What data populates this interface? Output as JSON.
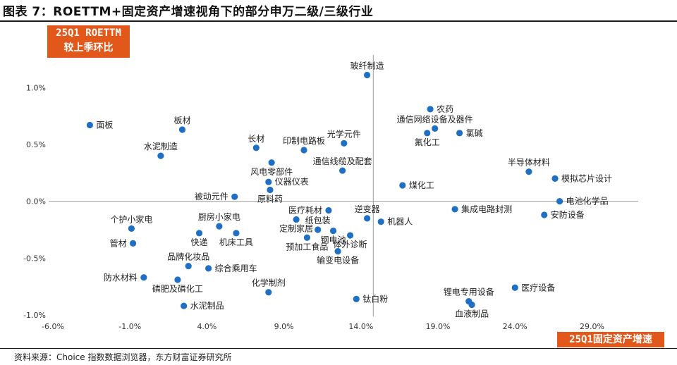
{
  "header": {
    "title": "图表 7：ROETTM+固定资产增速视角下的部分申万二级/三级行业"
  },
  "y_tag": {
    "line1": "25Q1 ROETTM",
    "line2": "较上季环比"
  },
  "x_tag": "25Q1固定资产增速",
  "source": "资料来源：Choice 指数数据浏览器，东方财富证券研究所",
  "colors": {
    "point": "#1f6fc5",
    "tag": "#e2581b"
  },
  "chart_data": {
    "type": "scatter",
    "xlim": [
      -6,
      32
    ],
    "ylim": [
      -1.0,
      1.2
    ],
    "x_ticks": [
      -6,
      -1,
      4,
      9,
      14,
      19,
      24,
      29
    ],
    "x_tick_labels": [
      "-6.0%",
      "-1.0%",
      "4.0%",
      "9.0%",
      "14.0%",
      "19.0%",
      "24.0%",
      "29.0%"
    ],
    "y_ticks": [
      1.0,
      0.5,
      0.0,
      -0.5,
      -1.0
    ],
    "y_tick_labels": [
      "1.0%",
      "0.5%",
      "0.0%",
      "-0.5%",
      "-1.0%"
    ],
    "quadrant_lines": {
      "x": 14.8,
      "y": 0.0
    },
    "points": [
      {
        "name": "玻纤制造",
        "x": 14.4,
        "y": 1.11,
        "pos": "above"
      },
      {
        "name": "农药",
        "x": 18.5,
        "y": 0.81,
        "pos": "right"
      },
      {
        "name": "面板",
        "x": -3.6,
        "y": 0.67,
        "pos": "right"
      },
      {
        "name": "板材",
        "x": 2.4,
        "y": 0.63,
        "pos": "above"
      },
      {
        "name": "通信网络设备及器件",
        "x": 18.8,
        "y": 0.64,
        "pos": "above"
      },
      {
        "name": "氯碱",
        "x": 20.4,
        "y": 0.6,
        "pos": "right"
      },
      {
        "name": "氟化工",
        "x": 18.3,
        "y": 0.6,
        "pos": "below"
      },
      {
        "name": "光学元件",
        "x": 12.9,
        "y": 0.51,
        "pos": "above"
      },
      {
        "name": "长材",
        "x": 7.2,
        "y": 0.47,
        "pos": "above"
      },
      {
        "name": "印制电路板",
        "x": 10.3,
        "y": 0.45,
        "pos": "above"
      },
      {
        "name": "水泥制造",
        "x": 1.0,
        "y": 0.4,
        "pos": "above"
      },
      {
        "name": "风电零部件",
        "x": 8.2,
        "y": 0.34,
        "pos": "below"
      },
      {
        "name": "通信线缆及配套",
        "x": 12.8,
        "y": 0.27,
        "pos": "above"
      },
      {
        "name": "半导体材料",
        "x": 24.9,
        "y": 0.26,
        "pos": "above"
      },
      {
        "name": "模拟芯片设计",
        "x": 26.6,
        "y": 0.2,
        "pos": "right"
      },
      {
        "name": "仪器仪表",
        "x": 8.0,
        "y": 0.17,
        "pos": "right"
      },
      {
        "name": "煤化工",
        "x": 16.7,
        "y": 0.14,
        "pos": "right"
      },
      {
        "name": "原料药",
        "x": 8.1,
        "y": 0.1,
        "pos": "below"
      },
      {
        "name": "被动元件",
        "x": 5.8,
        "y": 0.04,
        "pos": "left"
      },
      {
        "name": "电池化学品",
        "x": 26.9,
        "y": 0.0,
        "pos": "right"
      },
      {
        "name": "医疗耗材",
        "x": 11.9,
        "y": -0.08,
        "pos": "left"
      },
      {
        "name": "集成电路封测",
        "x": 20.1,
        "y": -0.07,
        "pos": "right"
      },
      {
        "name": "安防设备",
        "x": 25.9,
        "y": -0.12,
        "pos": "right"
      },
      {
        "name": "逆变器",
        "x": 14.4,
        "y": -0.15,
        "pos": "above"
      },
      {
        "name": "机器人",
        "x": 15.3,
        "y": -0.18,
        "pos": "right"
      },
      {
        "name": "定制家居",
        "x": 9.8,
        "y": -0.16,
        "pos": "below"
      },
      {
        "name": "纸包装",
        "x": 11.2,
        "y": -0.25,
        "pos": "above"
      },
      {
        "name": "厨房小家电",
        "x": 4.8,
        "y": -0.22,
        "pos": "above"
      },
      {
        "name": "个护小家电",
        "x": -0.9,
        "y": -0.24,
        "pos": "above"
      },
      {
        "name": "钢电池",
        "x": 12.2,
        "y": -0.26,
        "pos": "below"
      },
      {
        "name": "机床工具",
        "x": 5.9,
        "y": -0.28,
        "pos": "below"
      },
      {
        "name": "快递",
        "x": 3.5,
        "y": -0.28,
        "pos": "below"
      },
      {
        "name": "体外诊断",
        "x": 13.3,
        "y": -0.3,
        "pos": "below"
      },
      {
        "name": "预加工食品",
        "x": 10.5,
        "y": -0.32,
        "pos": "below"
      },
      {
        "name": "管材",
        "x": -0.8,
        "y": -0.37,
        "pos": "left"
      },
      {
        "name": "输变电设备",
        "x": 12.5,
        "y": -0.44,
        "pos": "below"
      },
      {
        "name": "品牌化妆品",
        "x": 2.8,
        "y": -0.57,
        "pos": "above"
      },
      {
        "name": "综合乘用车",
        "x": 4.1,
        "y": -0.59,
        "pos": "right"
      },
      {
        "name": "防水材料",
        "x": -0.1,
        "y": -0.67,
        "pos": "left"
      },
      {
        "name": "磷肥及磷化工",
        "x": 2.1,
        "y": -0.69,
        "pos": "below"
      },
      {
        "name": "化学制剂",
        "x": 8.0,
        "y": -0.8,
        "pos": "above"
      },
      {
        "name": "医疗设备",
        "x": 24.0,
        "y": -0.76,
        "pos": "right"
      },
      {
        "name": "钛白粉",
        "x": 13.7,
        "y": -0.86,
        "pos": "right"
      },
      {
        "name": "锂电专用设备",
        "x": 21.0,
        "y": -0.88,
        "pos": "above"
      },
      {
        "name": "血液制品",
        "x": 21.2,
        "y": -0.91,
        "pos": "below"
      },
      {
        "name": "水泥制品",
        "x": 2.5,
        "y": -0.92,
        "pos": "right"
      }
    ]
  }
}
